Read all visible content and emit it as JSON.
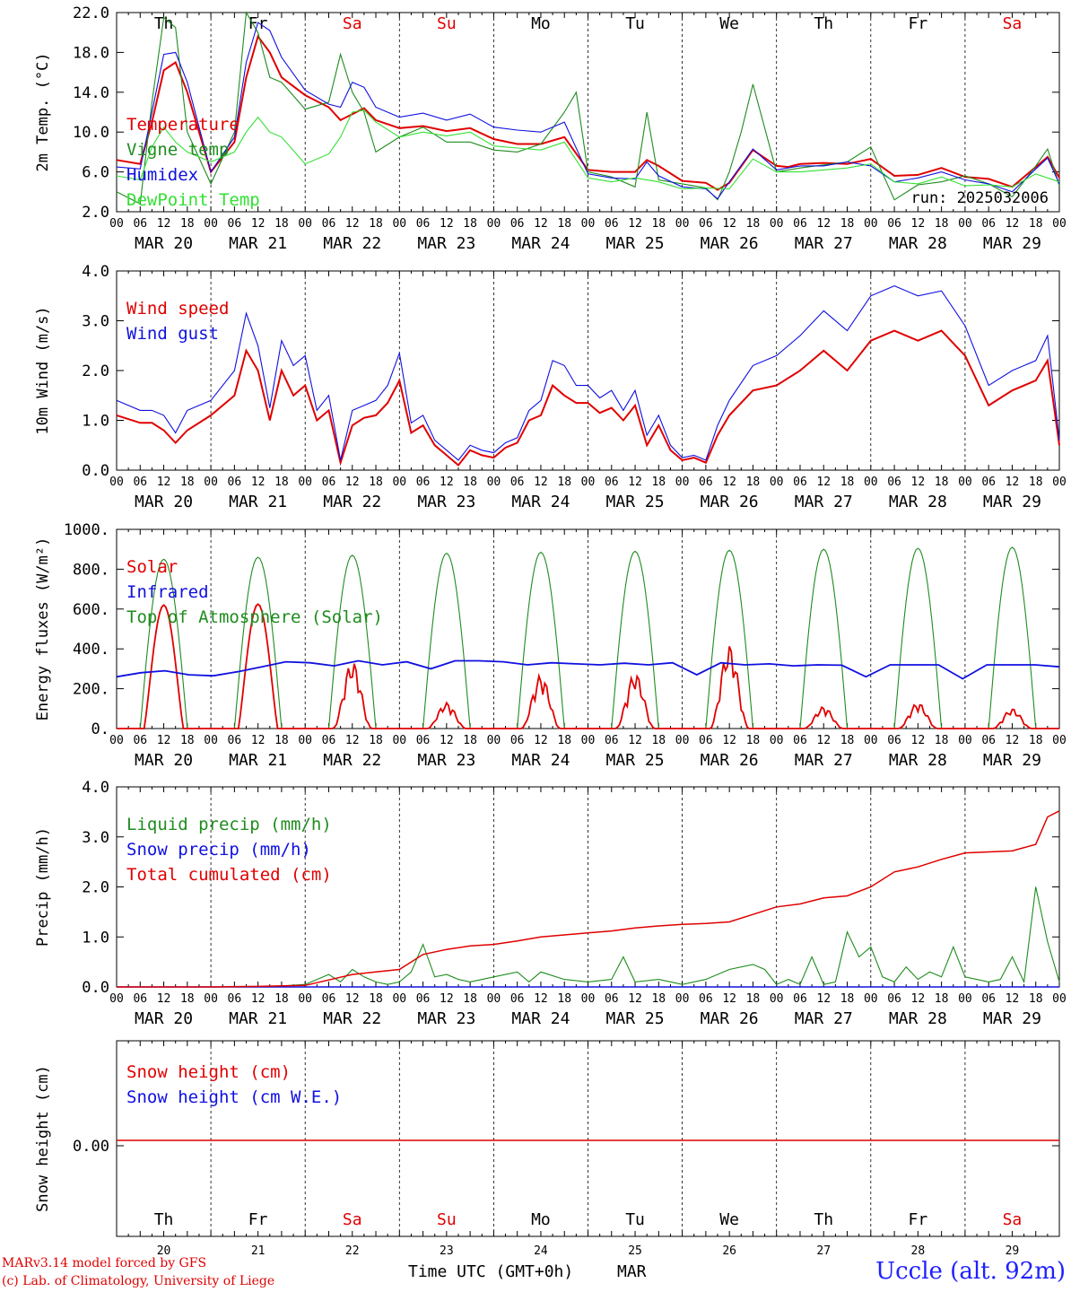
{
  "footer": {
    "credit_line1": "MARv3.14 model forced by GFS",
    "credit_line2": "(c) Lab. of Climatology, University of Liege",
    "station": "Uccle (alt. 92m)",
    "xlabel": "Time UTC (GMT+0h)",
    "month": "MAR"
  },
  "days": {
    "dates": [
      "MAR 20",
      "MAR 21",
      "MAR 22",
      "MAR 23",
      "MAR 24",
      "MAR 25",
      "MAR 26",
      "MAR 27",
      "MAR 28",
      "MAR 29"
    ],
    "day_numbers": [
      "20",
      "21",
      "22",
      "23",
      "24",
      "25",
      "26",
      "27",
      "28",
      "29"
    ],
    "weekdays": [
      "Th",
      "Fr",
      "Sa",
      "Su",
      "Mo",
      "Tu",
      "We",
      "Th",
      "Fr",
      "Sa"
    ],
    "weekday_colors": [
      "#000000",
      "#000000",
      "#e00000",
      "#e00000",
      "#000000",
      "#000000",
      "#000000",
      "#000000",
      "#000000",
      "#e00000"
    ],
    "hour_ticks": [
      "00",
      "06",
      "12",
      "18"
    ],
    "final_tick": "00"
  },
  "colors": {
    "red": "#e00000",
    "blue": "#1010e0",
    "green": "#1e8c1e",
    "lightgreen": "#33e033",
    "grid": "#000000"
  },
  "chart_data": [
    {
      "type": "line",
      "ylabel": "2m Temp. (°C)",
      "ylim": [
        2,
        22
      ],
      "yticks": [
        "2.0",
        "6.0",
        "10.0",
        "14.0",
        "18.0",
        "22.0"
      ],
      "annotation": "run: 2025032006",
      "x_unit": "hours since MAR 20 00 UTC",
      "series": [
        {
          "name": "Temperature",
          "color": "red",
          "x": [
            0,
            6,
            9,
            12,
            15,
            18,
            24,
            30,
            33,
            36,
            39,
            42,
            48,
            54,
            57,
            60,
            63,
            66,
            72,
            78,
            84,
            90,
            96,
            102,
            108,
            114,
            120,
            123,
            126,
            132,
            135,
            138,
            144,
            150,
            153,
            156,
            162,
            168,
            171,
            174,
            180,
            186,
            192,
            198,
            204,
            210,
            216,
            222,
            228,
            234,
            237,
            240
          ],
          "y": [
            7.2,
            6.8,
            11,
            16.2,
            17,
            14,
            6,
            9,
            15.5,
            19.6,
            18,
            15.5,
            13.7,
            12.5,
            11.2,
            11.8,
            12.4,
            11.2,
            10.4,
            10.6,
            10.1,
            10.4,
            9.3,
            8.8,
            8.8,
            9.5,
            6.2,
            6.1,
            6,
            6,
            7.2,
            6.6,
            5.1,
            4.9,
            4.2,
            4.9,
            8.2,
            6.6,
            6.5,
            6.8,
            6.9,
            6.8,
            7.3,
            5.6,
            5.7,
            6.4,
            5.5,
            5.3,
            4.5,
            6.5,
            7.5,
            5.4
          ]
        },
        {
          "name": "Vigne temp",
          "color": "green",
          "x": [
            0,
            6,
            9,
            12,
            15,
            18,
            24,
            30,
            33,
            36,
            39,
            42,
            48,
            54,
            57,
            60,
            63,
            66,
            72,
            78,
            84,
            90,
            96,
            102,
            108,
            114,
            117,
            120,
            126,
            132,
            135,
            138,
            144,
            150,
            153,
            156,
            159,
            162,
            168,
            174,
            180,
            186,
            192,
            198,
            204,
            210,
            216,
            222,
            228,
            234,
            237,
            240
          ],
          "y": [
            4,
            2.8,
            13,
            21.5,
            20.5,
            10,
            4.8,
            10,
            22,
            20,
            15.5,
            15,
            12.3,
            13,
            17.8,
            14,
            12,
            8,
            9.5,
            10.5,
            9,
            9,
            8.2,
            8,
            8.8,
            12,
            14,
            6,
            5.5,
            4.5,
            12,
            5.2,
            4.8,
            4.4,
            3.2,
            6,
            10,
            14.8,
            6,
            6.4,
            6.7,
            7,
            8.5,
            3.2,
            4.7,
            5,
            5.6,
            4.8,
            3.5,
            6.6,
            8.3,
            4.6
          ]
        },
        {
          "name": "Humidex",
          "color": "blue",
          "x": [
            0,
            6,
            9,
            12,
            15,
            18,
            24,
            30,
            33,
            36,
            39,
            42,
            48,
            54,
            57,
            60,
            63,
            66,
            72,
            78,
            84,
            90,
            96,
            102,
            108,
            114,
            120,
            126,
            132,
            135,
            138,
            144,
            150,
            153,
            156,
            162,
            168,
            174,
            180,
            186,
            192,
            198,
            204,
            210,
            216,
            222,
            228,
            234,
            237,
            240
          ],
          "y": [
            6.5,
            6.3,
            12,
            17.8,
            18,
            15,
            6,
            9.5,
            17,
            21,
            20.2,
            17.5,
            14.2,
            12.8,
            12.5,
            15,
            14.5,
            12.5,
            11.5,
            11.9,
            11.2,
            11.8,
            10.5,
            10.2,
            10,
            11,
            5.8,
            5.4,
            5.3,
            7,
            5.6,
            4.5,
            4.3,
            3.3,
            5,
            8.3,
            6.2,
            6.6,
            6.6,
            7,
            6.6,
            5,
            5.4,
            6,
            5.2,
            4.8,
            4,
            6.3,
            7.4,
            4.8
          ]
        },
        {
          "name": "DewPoint Temp",
          "color": "lightgreen",
          "x": [
            0,
            6,
            9,
            12,
            15,
            18,
            24,
            30,
            33,
            36,
            39,
            42,
            48,
            54,
            57,
            60,
            63,
            66,
            72,
            78,
            84,
            90,
            96,
            102,
            108,
            114,
            120,
            126,
            132,
            138,
            144,
            150,
            156,
            162,
            168,
            174,
            180,
            186,
            192,
            198,
            204,
            210,
            216,
            222,
            228,
            234,
            240
          ],
          "y": [
            5.6,
            5.2,
            8.5,
            10.5,
            9,
            8,
            7,
            8,
            10,
            11.5,
            10,
            9.5,
            6.8,
            7.8,
            9.5,
            12,
            12.2,
            11,
            9.5,
            10,
            9.6,
            10,
            8.6,
            8.4,
            8.2,
            9,
            5.4,
            5,
            5.4,
            5,
            4.3,
            4.4,
            4.3,
            7.3,
            6,
            6,
            6.2,
            6.4,
            6.8,
            5,
            4.8,
            5.5,
            4.6,
            4.7,
            4.5,
            5.8,
            5
          ]
        }
      ]
    },
    {
      "type": "line",
      "ylabel": "10m Wind (m/s)",
      "ylim": [
        0,
        4
      ],
      "yticks": [
        "0.0",
        "1.0",
        "2.0",
        "3.0",
        "4.0"
      ],
      "x_unit": "hours since MAR 20 00 UTC",
      "series": [
        {
          "name": "Wind speed",
          "color": "red",
          "x": [
            0,
            6,
            9,
            12,
            15,
            18,
            24,
            30,
            33,
            36,
            39,
            42,
            45,
            48,
            51,
            54,
            57,
            60,
            63,
            66,
            69,
            72,
            75,
            78,
            81,
            84,
            87,
            90,
            93,
            96,
            99,
            102,
            105,
            108,
            111,
            114,
            117,
            120,
            123,
            126,
            129,
            132,
            135,
            138,
            141,
            144,
            147,
            150,
            153,
            156,
            162,
            168,
            174,
            180,
            186,
            192,
            198,
            204,
            210,
            216,
            222,
            228,
            234,
            237,
            240
          ],
          "y": [
            1.1,
            0.95,
            0.95,
            0.8,
            0.55,
            0.8,
            1.1,
            1.5,
            2.4,
            2.0,
            1.0,
            2.0,
            1.5,
            1.7,
            1.0,
            1.2,
            0.15,
            0.9,
            1.05,
            1.1,
            1.35,
            1.8,
            0.75,
            0.9,
            0.5,
            0.3,
            0.1,
            0.4,
            0.3,
            0.25,
            0.45,
            0.55,
            1.0,
            1.1,
            1.7,
            1.5,
            1.35,
            1.35,
            1.15,
            1.25,
            1.0,
            1.3,
            0.5,
            0.9,
            0.4,
            0.2,
            0.25,
            0.15,
            0.7,
            1.1,
            1.6,
            1.7,
            2.0,
            2.4,
            2.0,
            2.6,
            2.8,
            2.6,
            2.8,
            2.3,
            1.3,
            1.6,
            1.8,
            2.2,
            0.5
          ]
        },
        {
          "name": "Wind gust",
          "color": "blue",
          "x": [
            0,
            6,
            9,
            12,
            15,
            18,
            24,
            30,
            33,
            36,
            39,
            42,
            45,
            48,
            51,
            54,
            57,
            60,
            63,
            66,
            69,
            72,
            75,
            78,
            81,
            84,
            87,
            90,
            93,
            96,
            99,
            102,
            105,
            108,
            111,
            114,
            117,
            120,
            123,
            126,
            129,
            132,
            135,
            138,
            141,
            144,
            147,
            150,
            153,
            156,
            162,
            168,
            174,
            180,
            186,
            192,
            198,
            204,
            210,
            216,
            222,
            228,
            234,
            237,
            240
          ],
          "y": [
            1.4,
            1.2,
            1.2,
            1.1,
            0.75,
            1.2,
            1.4,
            2.0,
            3.15,
            2.5,
            1.25,
            2.6,
            2.1,
            2.3,
            1.2,
            1.5,
            0.2,
            1.2,
            1.3,
            1.4,
            1.7,
            2.35,
            0.95,
            1.1,
            0.6,
            0.4,
            0.2,
            0.5,
            0.4,
            0.35,
            0.55,
            0.65,
            1.2,
            1.4,
            2.2,
            2.1,
            1.7,
            1.7,
            1.45,
            1.6,
            1.2,
            1.6,
            0.7,
            1.1,
            0.5,
            0.25,
            0.3,
            0.2,
            0.9,
            1.4,
            2.1,
            2.3,
            2.7,
            3.2,
            2.8,
            3.5,
            3.7,
            3.5,
            3.6,
            2.9,
            1.7,
            2.0,
            2.2,
            2.7,
            0.6
          ]
        }
      ]
    },
    {
      "type": "line",
      "ylabel": "Energy fluxes (W/m²)",
      "ylim": [
        0,
        1000
      ],
      "yticks": [
        "0.",
        "200.",
        "400.",
        "600.",
        "800.",
        "1000."
      ],
      "x_unit": "hours since MAR 20 00 UTC",
      "toa_peaks": [
        850,
        860,
        870,
        880,
        885,
        890,
        895,
        900,
        905,
        910
      ],
      "solar_peaks": [
        620,
        625,
        340,
        130,
        270,
        280,
        420,
        110,
        130,
        100
      ],
      "series": [
        {
          "name": "Solar",
          "color": "red"
        },
        {
          "name": "Infrared",
          "color": "blue"
        },
        {
          "name": "Top of Atmosphere (Solar)",
          "color": "green"
        }
      ],
      "infrared_y": [
        260,
        280,
        290,
        270,
        265,
        285,
        310,
        335,
        330,
        315,
        340,
        320,
        335,
        300,
        340,
        340,
        335,
        320,
        330,
        325,
        320,
        328,
        320,
        330,
        270,
        330,
        320,
        325,
        315,
        320,
        318,
        260,
        320,
        320,
        320,
        250,
        320,
        320,
        320,
        310
      ]
    },
    {
      "type": "line",
      "ylabel": "Precip (mm/h)",
      "ylim": [
        0,
        4
      ],
      "yticks": [
        "0.0",
        "1.0",
        "2.0",
        "3.0",
        "4.0"
      ],
      "x_unit": "hours since MAR 20 00 UTC",
      "series": [
        {
          "name": "Liquid precip (mm/h)",
          "color": "green",
          "x": [
            0,
            36,
            42,
            48,
            54,
            57,
            60,
            63,
            66,
            69,
            72,
            75,
            78,
            81,
            84,
            87,
            90,
            96,
            102,
            105,
            108,
            114,
            120,
            126,
            129,
            132,
            138,
            144,
            150,
            156,
            162,
            165,
            168,
            171,
            174,
            177,
            180,
            183,
            186,
            189,
            192,
            195,
            198,
            201,
            204,
            207,
            210,
            213,
            216,
            222,
            225,
            228,
            231,
            234,
            237,
            240
          ],
          "y": [
            0,
            0,
            0.02,
            0.05,
            0.25,
            0.1,
            0.35,
            0.2,
            0.1,
            0.05,
            0.1,
            0.3,
            0.85,
            0.2,
            0.25,
            0.15,
            0.1,
            0.2,
            0.3,
            0.1,
            0.3,
            0.15,
            0.1,
            0.15,
            0.6,
            0.1,
            0.15,
            0.05,
            0.15,
            0.35,
            0.45,
            0.35,
            0.05,
            0.15,
            0.05,
            0.6,
            0.05,
            0.1,
            1.1,
            0.6,
            0.8,
            0.2,
            0.1,
            0.4,
            0.15,
            0.3,
            0.2,
            0.8,
            0.2,
            0.1,
            0.15,
            0.6,
            0.1,
            2.0,
            0.9,
            0.1
          ]
        },
        {
          "name": "Snow precip (mm/h)",
          "color": "blue",
          "x": [
            0,
            240
          ],
          "y": [
            0,
            0
          ]
        },
        {
          "name": "Total cumulated (cm)",
          "color": "red",
          "x": [
            0,
            24,
            36,
            48,
            60,
            66,
            72,
            78,
            84,
            90,
            96,
            102,
            108,
            114,
            120,
            126,
            132,
            138,
            144,
            150,
            156,
            162,
            168,
            174,
            180,
            186,
            192,
            198,
            204,
            210,
            216,
            222,
            228,
            234,
            237,
            240
          ],
          "y": [
            0,
            0,
            0.01,
            0.03,
            0.25,
            0.3,
            0.35,
            0.65,
            0.75,
            0.82,
            0.85,
            0.92,
            1.0,
            1.04,
            1.08,
            1.12,
            1.18,
            1.22,
            1.25,
            1.27,
            1.3,
            1.45,
            1.6,
            1.66,
            1.78,
            1.82,
            2.0,
            2.3,
            2.4,
            2.55,
            2.68,
            2.7,
            2.72,
            2.85,
            3.4,
            3.52
          ]
        }
      ]
    },
    {
      "type": "line",
      "ylabel": "Snow height (cm)",
      "yticks": [
        "0.00"
      ],
      "x_unit": "hours since MAR 20 00 UTC",
      "series": [
        {
          "name": "Snow height (cm)",
          "color": "red",
          "x": [
            0,
            240
          ],
          "y": [
            0,
            0
          ]
        },
        {
          "name": "Snow height (cm W.E.)",
          "color": "blue",
          "x": [
            0,
            240
          ],
          "y": [
            0,
            0
          ]
        }
      ]
    }
  ]
}
